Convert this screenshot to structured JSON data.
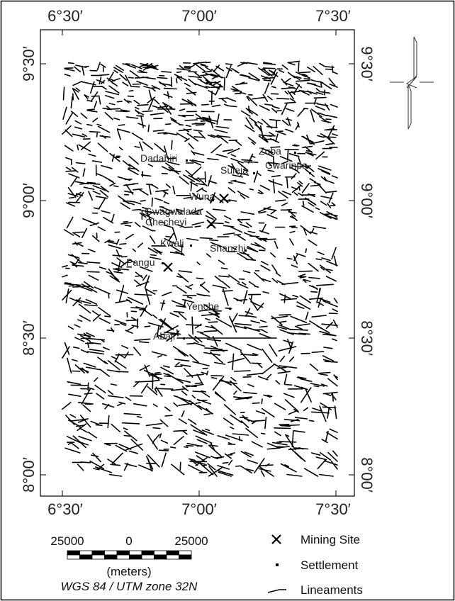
{
  "map": {
    "lon_labels": [
      "6°30′",
      "7°00′",
      "7°30′"
    ],
    "lat_labels": [
      "9°30′",
      "9°00′",
      "8°30′",
      "8°00′"
    ],
    "places": [
      "Dadabiri",
      "Zuba",
      "Gwarinpa",
      "Suleja",
      "Wuna",
      "Gwagwalada",
      "Checheyi",
      "Kwali",
      "Shanzhi",
      "Pangu",
      "Yenche",
      "Abaji"
    ],
    "scale": {
      "left": "25000",
      "zero": "0",
      "right": "25000",
      "unit": "(meters)"
    },
    "projection": "WGS 84 / UTM zone 32N",
    "legend": [
      "Mining Site",
      "Settlement",
      "Lineaments"
    ]
  }
}
